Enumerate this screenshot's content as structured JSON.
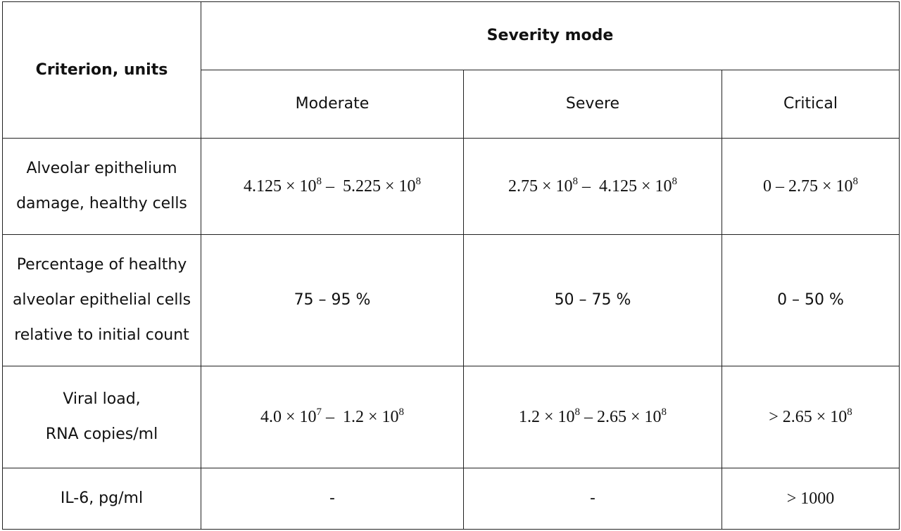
{
  "header": {
    "criterion": "Criterion, units",
    "group": "Severity mode",
    "columns": [
      "Moderate",
      "Severe",
      "Critical"
    ]
  },
  "rows": [
    {
      "criterion": [
        "Alveolar epithelium",
        "damage, healthy cells"
      ],
      "cells": [
        [
          {
            "text": "4.125 × 10"
          },
          {
            "sup": "8"
          },
          {
            "text": " –  5.225 × 10"
          },
          {
            "sup": "8"
          }
        ],
        [
          {
            "text": "2.75 × 10"
          },
          {
            "sup": "8"
          },
          {
            "text": " –  4.125 × 10"
          },
          {
            "sup": "8"
          }
        ],
        [
          {
            "text": "0 – 2.75 × 10"
          },
          {
            "sup": "8"
          }
        ]
      ]
    },
    {
      "criterion": [
        "Percentage of healthy",
        "alveolar epithelial cells",
        "relative to initial count"
      ],
      "cells": [
        [
          {
            "text": "75 – 95 %"
          }
        ],
        [
          {
            "text": "50 – 75 %"
          }
        ],
        [
          {
            "text": "0 – 50 %"
          }
        ]
      ]
    },
    {
      "criterion": [
        "Viral load,",
        "RNA copies/ml"
      ],
      "cells": [
        [
          {
            "text": "4.0 × 10"
          },
          {
            "sup": "7"
          },
          {
            "text": " –  1.2 × 10"
          },
          {
            "sup": "8"
          }
        ],
        [
          {
            "text": "1.2 × 10"
          },
          {
            "sup": "8"
          },
          {
            "text": " – 2.65 × 10"
          },
          {
            "sup": "8"
          }
        ],
        [
          {
            "text": "> 2.65 × 10"
          },
          {
            "sup": "8"
          }
        ]
      ]
    },
    {
      "criterion": [
        "IL-6, pg/ml"
      ],
      "cells": [
        [
          {
            "text": "-"
          }
        ],
        [
          {
            "text": "-"
          }
        ],
        [
          {
            "text": "> 1000"
          }
        ]
      ]
    }
  ]
}
